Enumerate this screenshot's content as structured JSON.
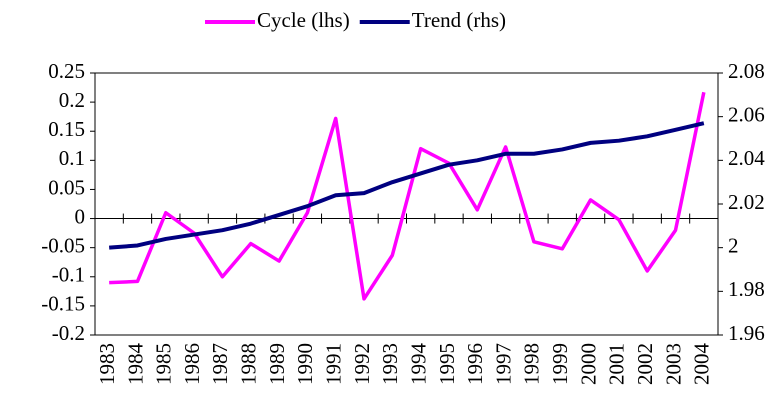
{
  "chart_data": {
    "type": "line",
    "categories": [
      "1983",
      "1984",
      "1985",
      "1986",
      "1987",
      "1988",
      "1989",
      "1990",
      "1991",
      "1992",
      "1993",
      "1994",
      "1995",
      "1996",
      "1997",
      "1998",
      "1999",
      "2000",
      "2001",
      "2002",
      "2003",
      "2004"
    ],
    "series": [
      {
        "name": "Cycle (lhs)",
        "color": "#ff00ff",
        "values": [
          -0.11,
          -0.108,
          0.01,
          -0.025,
          -0.1,
          -0.043,
          -0.073,
          0.01,
          0.172,
          -0.138,
          -0.063,
          0.12,
          0.095,
          0.015,
          0.123,
          -0.04,
          -0.052,
          0.032,
          -0.002,
          -0.09,
          -0.02,
          0.217
        ]
      },
      {
        "name": "Trend (rhs)",
        "color": "#000080",
        "axis": "y2",
        "values": [
          2.0,
          2.001,
          2.004,
          2.006,
          2.008,
          2.011,
          2.015,
          2.019,
          2.024,
          2.025,
          2.03,
          2.034,
          2.038,
          2.04,
          2.043,
          2.043,
          2.045,
          2.048,
          2.049,
          2.051,
          2.054,
          2.057
        ]
      }
    ],
    "ylim": [
      -0.2,
      0.25
    ],
    "yticks": [
      0.25,
      0.2,
      0.15,
      0.1,
      0.05,
      0,
      -0.05,
      -0.1,
      -0.15,
      -0.2
    ],
    "y2lim": [
      1.96,
      2.08
    ],
    "y2ticks": [
      2.08,
      2.06,
      2.04,
      2.02,
      2,
      1.98,
      1.96
    ],
    "legend": "top"
  }
}
